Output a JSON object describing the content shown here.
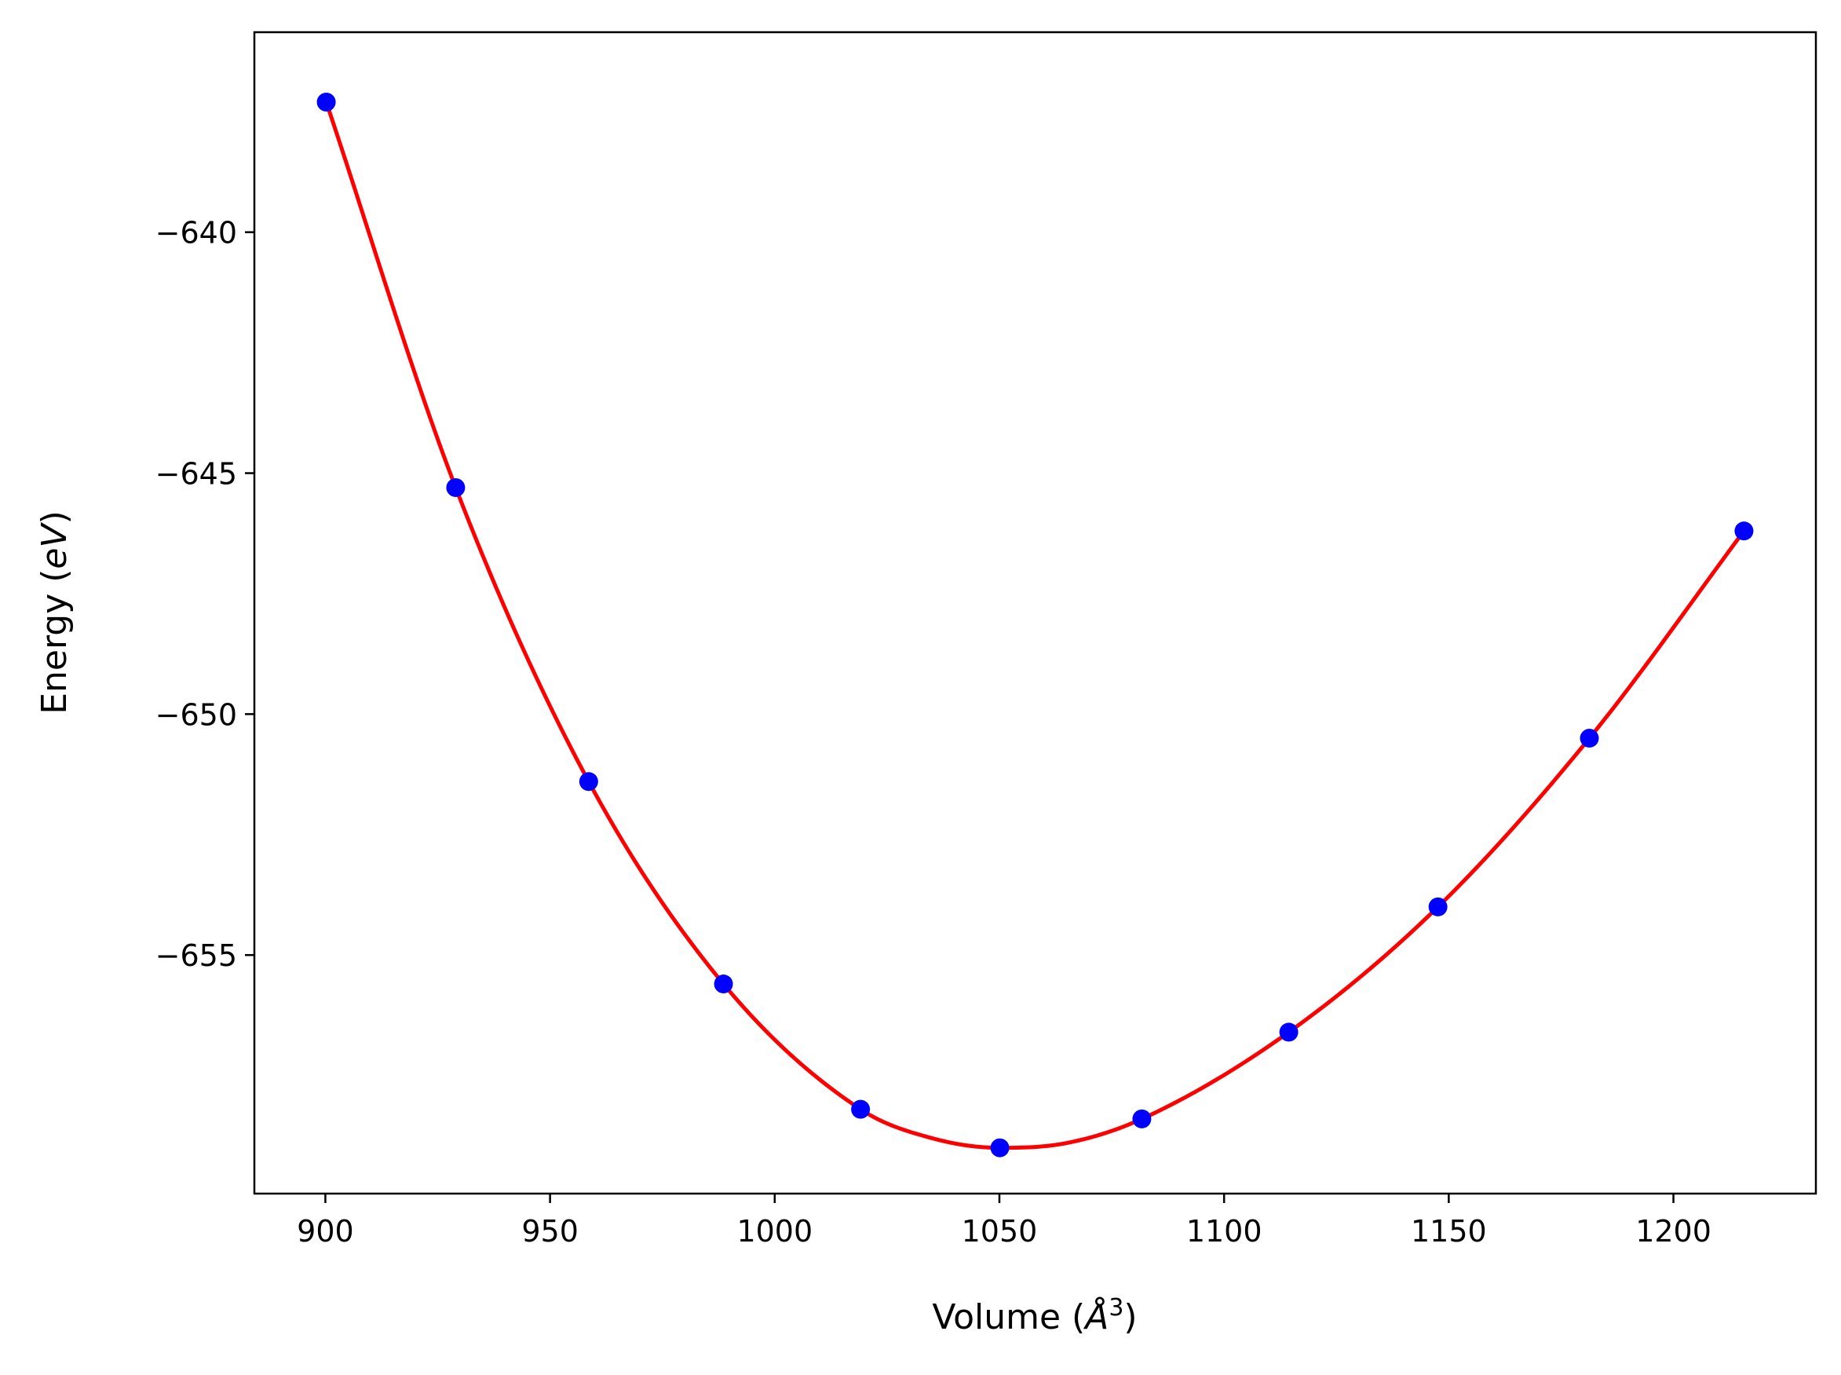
{
  "chart_data": {
    "type": "scatter",
    "xlabel_parts": [
      "Volume (",
      "Å",
      "3",
      ")"
    ],
    "ylabel_parts": [
      "Energy (",
      "eV",
      ")"
    ],
    "xlim": [
      884.2,
      1231.7
    ],
    "ylim": [
      -659.95,
      -635.85
    ],
    "x_ticks": [
      900,
      950,
      1000,
      1050,
      1100,
      1150,
      1200
    ],
    "y_ticks": [
      -640,
      -645,
      -650,
      -655
    ],
    "x_tick_labels": [
      "900",
      "950",
      "1000",
      "1050",
      "1100",
      "1150",
      "1200"
    ],
    "y_tick_labels": [
      "−640",
      "−645",
      "−650",
      "−655"
    ],
    "grid": false,
    "series": [
      {
        "kind": "points",
        "color": "#0000ff",
        "x": [
          900.2,
          929.0,
          958.6,
          988.6,
          1019.1,
          1050.1,
          1081.7,
          1114.4,
          1147.6,
          1181.3,
          1215.7
        ],
        "y": [
          -637.3,
          -645.3,
          -651.4,
          -655.6,
          -658.2,
          -659.0,
          -658.4,
          -656.6,
          -654.0,
          -650.5,
          -646.2
        ]
      },
      {
        "kind": "fit",
        "color": "#ff0000",
        "x": [
          900.2,
          929.0,
          958.6,
          988.6,
          1019.1,
          1035.0,
          1050.1,
          1065.0,
          1081.7,
          1114.4,
          1147.6,
          1181.3,
          1215.7
        ],
        "y": [
          -637.3,
          -645.3,
          -651.4,
          -655.6,
          -658.2,
          -658.8,
          -659.0,
          -658.9,
          -658.4,
          -656.6,
          -654.0,
          -650.5,
          -646.2
        ]
      }
    ]
  }
}
